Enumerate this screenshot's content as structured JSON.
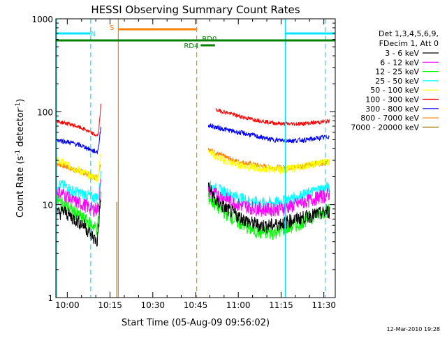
{
  "chart_data": {
    "type": "line",
    "title": "HESSI Observing Summary Count Rates",
    "xlabel": "Start Time (05-Aug-09 09:56:02)",
    "ylabel_main": "Count Rate (s",
    "ylabel_sup1": "-1",
    "ylabel_mid": " detector",
    "ylabel_sup2": "-1",
    "ylabel_end": ")",
    "y_scale": "log",
    "ylim": [
      1,
      1000
    ],
    "xlim_min": [
      0,
      98
    ],
    "x_ticks": [
      {
        "min": 4,
        "label": "10:00"
      },
      {
        "min": 19,
        "label": "10:15"
      },
      {
        "min": 34,
        "label": "10:30"
      },
      {
        "min": 49,
        "label": "10:45"
      },
      {
        "min": 64,
        "label": "11:00"
      },
      {
        "min": 79,
        "label": "11:15"
      },
      {
        "min": 94,
        "label": "11:30"
      }
    ],
    "y_ticks": [
      {
        "value": 1,
        "label": "1"
      },
      {
        "value": 10,
        "label": "10"
      },
      {
        "value": 100,
        "label": "100"
      },
      {
        "value": 1000,
        "label": "1000"
      }
    ],
    "legend_title_1": "Det 1,3,4,5,6,9,",
    "legend_title_2": "FDecim 1, Att 0",
    "legend_position": "right, outside plot",
    "footer_date": "12-Mar-2010 19:28",
    "flags": {
      "night_label": "N",
      "saa_label": "S",
      "rd0_label": "RD0",
      "rd4_label": "RD4"
    },
    "series": [
      {
        "name": "3 - 6 keV",
        "color": "#000000",
        "x": [
          0,
          3,
          6,
          10,
          13,
          14.5,
          15,
          15.8
        ],
        "y": [
          8,
          8.5,
          7.2,
          6,
          4.5,
          4,
          6,
          13
        ],
        "x2": [
          53.5,
          56,
          60,
          64,
          68,
          72,
          76,
          80,
          84,
          88,
          92,
          96
        ],
        "y2": [
          16,
          11,
          9,
          7.5,
          6.5,
          6,
          6,
          6.5,
          7,
          7.5,
          8,
          8.5
        ]
      },
      {
        "name": "6 - 12 keV",
        "color": "#ff00ff",
        "x": [
          0,
          3,
          6,
          10,
          13,
          14.5,
          15,
          15.8
        ],
        "y": [
          14,
          13,
          11,
          10,
          9,
          9,
          10,
          18
        ],
        "x2": [
          53.5,
          56,
          60,
          64,
          68,
          72,
          76,
          80,
          84,
          88,
          92,
          96
        ],
        "y2": [
          14,
          13,
          11.5,
          10,
          9.5,
          9,
          9,
          9.2,
          10,
          11,
          12,
          13
        ]
      },
      {
        "name": "12 - 25 keV",
        "color": "#00ff00",
        "x": [
          0,
          3,
          6,
          10,
          13,
          14.5,
          15,
          15.8
        ],
        "y": [
          11,
          10,
          8.5,
          7,
          6,
          5.5,
          7,
          14
        ],
        "x2": [
          53.5,
          56,
          60,
          64,
          68,
          72,
          76,
          80,
          84,
          88,
          92,
          96
        ],
        "y2": [
          12,
          10,
          8,
          6.5,
          5.5,
          5,
          5,
          5.5,
          6,
          7,
          8,
          9
        ]
      },
      {
        "name": "25 - 50 keV",
        "color": "#00ffff",
        "x": [
          0,
          3,
          6,
          10,
          13,
          14.5,
          15,
          15.8
        ],
        "y": [
          17,
          16,
          14,
          13,
          12,
          12,
          13,
          22
        ],
        "x2": [
          53.5,
          56,
          60,
          64,
          68,
          72,
          76,
          80,
          84,
          88,
          92,
          96
        ],
        "y2": [
          16,
          15,
          13.5,
          12,
          11,
          10.5,
          10.5,
          11,
          12,
          13,
          14.5,
          15.5
        ]
      },
      {
        "name": "50 - 100 keV",
        "color": "#ffff00",
        "x": [
          0,
          3,
          6,
          10,
          13,
          14.5,
          15,
          15.8
        ],
        "y": [
          30,
          28,
          25,
          22,
          20,
          19,
          22,
          35
        ],
        "x2": [
          53.5,
          56,
          60,
          64,
          68,
          72,
          76,
          80,
          84,
          88,
          92,
          96
        ],
        "y2": [
          40,
          33,
          29,
          27,
          25.5,
          24.5,
          24,
          24,
          25,
          26.5,
          28,
          29.5
        ]
      },
      {
        "name": "100 - 300 keV",
        "color": "#ff0000",
        "x": [
          0,
          3,
          6,
          10,
          13,
          14.5,
          15,
          15.8
        ],
        "y": [
          79,
          76,
          72,
          65,
          58,
          55,
          60,
          125
        ],
        "x2": [
          56,
          60,
          64,
          68,
          72,
          76,
          80,
          84,
          88,
          92,
          96
        ],
        "y2": [
          105,
          98,
          90,
          84,
          80,
          76,
          74,
          74,
          75,
          77,
          79
        ]
      },
      {
        "name": "300 - 800 keV",
        "color": "#0000ff",
        "x": [
          0,
          3,
          6,
          10,
          13,
          14.5,
          15,
          15.8
        ],
        "y": [
          50,
          48,
          46,
          42,
          38,
          37,
          42,
          70
        ],
        "x2": [
          53.5,
          56,
          60,
          64,
          68,
          72,
          76,
          80,
          84,
          88,
          92,
          96
        ],
        "y2": [
          72,
          68,
          64,
          60,
          57,
          53,
          50,
          49,
          49,
          50,
          52,
          54
        ]
      },
      {
        "name": "800 - 7000 keV",
        "color": "#ff8000",
        "x": [
          0,
          3,
          6,
          10,
          13,
          14.5,
          15,
          15.8
        ],
        "y": [
          28,
          26,
          24,
          22,
          20,
          20,
          22,
          30
        ],
        "x2": [
          53.5,
          56,
          60,
          64,
          68,
          72,
          76,
          80,
          84,
          88,
          92,
          96
        ],
        "y2": [
          40,
          36,
          32,
          29,
          27.5,
          26,
          25,
          25,
          25.5,
          26.5,
          28,
          29
        ]
      },
      {
        "name": "7000 - 20000 keV",
        "color": "#a07800",
        "x": [],
        "y": []
      }
    ]
  }
}
